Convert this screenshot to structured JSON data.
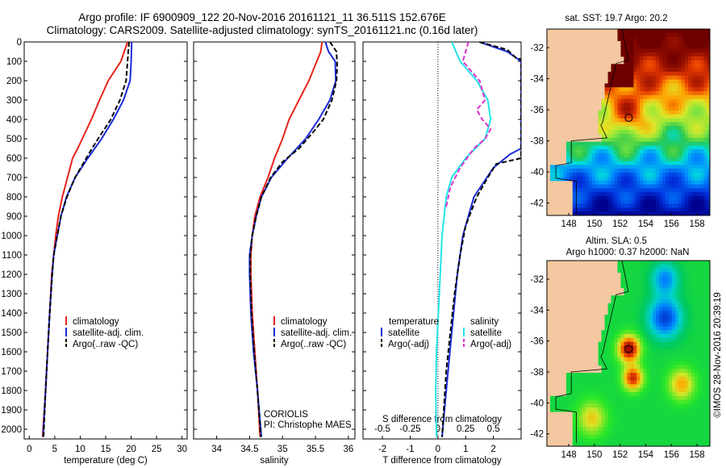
{
  "header": {
    "line1": "Argo profile: IF 6900909_122 20-Nov-2016 20161121_11 36.511S 152.676E",
    "line2": "Climatology: CARS2009. Satellite-adjusted climatology: synTS_20161121.nc (0.16d later)"
  },
  "credit": "©IMOS 28-Nov-2016 20:39:19",
  "colors": {
    "climatology": "#e8241c",
    "satellite": "#1a2bd6",
    "argo": "#000000",
    "sal_sat": "#22e4e8",
    "sal_argo": "#e030d0",
    "land": "#f4c8a0"
  },
  "chart_data": [
    {
      "type": "line",
      "name": "temperature-panel",
      "xlabel": "temperature (deg C)",
      "xlim": [
        -1,
        31
      ],
      "xticks": [
        0,
        5,
        10,
        15,
        20,
        25,
        30
      ],
      "ylim": [
        2050,
        0
      ],
      "yticks": [
        0,
        100,
        200,
        300,
        400,
        500,
        600,
        700,
        800,
        900,
        1000,
        1100,
        1200,
        1300,
        1400,
        1500,
        1600,
        1700,
        1800,
        1900,
        2000
      ],
      "legend": [
        "climatology",
        "satellite-adj. clim.",
        "Argo(..raw -QC)"
      ],
      "series": [
        {
          "name": "climatology",
          "color": "#e8241c",
          "dash": false,
          "points": [
            [
              19.3,
              0
            ],
            [
              18,
              100
            ],
            [
              15.5,
              200
            ],
            [
              13.8,
              300
            ],
            [
              12.2,
              400
            ],
            [
              10.4,
              500
            ],
            [
              9.5,
              550
            ],
            [
              8.5,
              600
            ],
            [
              7.5,
              700
            ],
            [
              6.5,
              800
            ],
            [
              5.7,
              900
            ],
            [
              5.2,
              1000
            ],
            [
              4.8,
              1100
            ],
            [
              4.4,
              1200
            ],
            [
              4,
              1400
            ],
            [
              3.6,
              1600
            ],
            [
              3.2,
              1800
            ],
            [
              2.6,
              2040
            ]
          ]
        },
        {
          "name": "satellite-adj. clim.",
          "color": "#1a2bd6",
          "dash": false,
          "points": [
            [
              20.1,
              0
            ],
            [
              20,
              100
            ],
            [
              19.8,
              200
            ],
            [
              18.5,
              300
            ],
            [
              16.5,
              400
            ],
            [
              14.2,
              500
            ],
            [
              11.5,
              600
            ],
            [
              9,
              700
            ],
            [
              7.3,
              800
            ],
            [
              6.2,
              900
            ],
            [
              5.5,
              1000
            ],
            [
              4.8,
              1100
            ],
            [
              4.5,
              1200
            ],
            [
              4,
              1400
            ],
            [
              3.6,
              1600
            ],
            [
              3.2,
              1800
            ],
            [
              2.7,
              2040
            ]
          ]
        },
        {
          "name": "Argo(..raw -QC)",
          "color": "#000000",
          "dash": true,
          "points": [
            [
              19.6,
              0
            ],
            [
              19.3,
              100
            ],
            [
              19,
              200
            ],
            [
              17.8,
              300
            ],
            [
              16,
              400
            ],
            [
              14,
              480
            ],
            [
              12.3,
              550
            ],
            [
              11.2,
              600
            ],
            [
              9,
              700
            ],
            [
              7.4,
              800
            ],
            [
              6.2,
              900
            ],
            [
              5.5,
              1000
            ],
            [
              4.8,
              1100
            ],
            [
              4.5,
              1200
            ],
            [
              4,
              1400
            ],
            [
              3.6,
              1600
            ],
            [
              3.2,
              1800
            ],
            [
              2.8,
              2040
            ]
          ]
        }
      ]
    },
    {
      "type": "line",
      "name": "salinity-panel",
      "xlabel": "salinity",
      "xlim": [
        33.65,
        36.1
      ],
      "xticks": [
        34,
        34.5,
        35,
        35.5,
        36
      ],
      "ylim": [
        2050,
        0
      ],
      "legend": [
        "climatology",
        "satellite-adj. clim.",
        "Argo(..raw -QC)"
      ],
      "series": [
        {
          "name": "climatology",
          "color": "#e8241c",
          "dash": false,
          "points": [
            [
              35.6,
              0
            ],
            [
              35.58,
              50
            ],
            [
              35.52,
              100
            ],
            [
              35.4,
              200
            ],
            [
              35.25,
              300
            ],
            [
              35.1,
              400
            ],
            [
              35,
              500
            ],
            [
              34.88,
              600
            ],
            [
              34.78,
              700
            ],
            [
              34.66,
              800
            ],
            [
              34.58,
              900
            ],
            [
              34.54,
              1000
            ],
            [
              34.52,
              1100
            ],
            [
              34.52,
              1200
            ],
            [
              34.54,
              1400
            ],
            [
              34.58,
              1600
            ],
            [
              34.62,
              1800
            ],
            [
              34.66,
              2040
            ]
          ]
        },
        {
          "name": "satellite-adj. clim.",
          "color": "#1a2bd6",
          "dash": false,
          "points": [
            [
              35.65,
              0
            ],
            [
              35.7,
              50
            ],
            [
              35.8,
              100
            ],
            [
              35.81,
              200
            ],
            [
              35.72,
              300
            ],
            [
              35.55,
              400
            ],
            [
              35.35,
              500
            ],
            [
              35.08,
              600
            ],
            [
              34.83,
              700
            ],
            [
              34.68,
              800
            ],
            [
              34.6,
              900
            ],
            [
              34.54,
              1000
            ],
            [
              34.5,
              1100
            ],
            [
              34.5,
              1200
            ],
            [
              34.52,
              1400
            ],
            [
              34.56,
              1600
            ],
            [
              34.62,
              1800
            ],
            [
              34.68,
              2040
            ]
          ]
        },
        {
          "name": "Argo(..raw -QC)",
          "color": "#000000",
          "dash": true,
          "points": [
            [
              35.72,
              0
            ],
            [
              35.82,
              50
            ],
            [
              35.83,
              120
            ],
            [
              35.82,
              200
            ],
            [
              35.75,
              300
            ],
            [
              35.62,
              400
            ],
            [
              35.48,
              460
            ],
            [
              35.25,
              550
            ],
            [
              35,
              620
            ],
            [
              34.82,
              700
            ],
            [
              34.68,
              800
            ],
            [
              34.6,
              900
            ],
            [
              34.54,
              1000
            ],
            [
              34.51,
              1100
            ],
            [
              34.51,
              1200
            ],
            [
              34.53,
              1400
            ],
            [
              34.57,
              1600
            ],
            [
              34.62,
              1800
            ],
            [
              34.67,
              2040
            ]
          ]
        }
      ]
    },
    {
      "type": "line",
      "name": "difference-panel",
      "xlabel": "T difference from climatology",
      "xlabel_top": "S difference from climatology",
      "xlim": [
        -2.7,
        3.0
      ],
      "xticks": [
        -2,
        -1,
        0,
        1,
        2
      ],
      "xticklabels_s": [
        "-0.5",
        "-0.25",
        "0",
        "0.25",
        "0.5"
      ],
      "ylim": [
        2050,
        0
      ],
      "legend_temperature": {
        "heading": "temperature",
        "items": [
          "satellite",
          "Argo(-adj)"
        ]
      },
      "legend_salinity": {
        "heading": "salinity",
        "items": [
          "satellite",
          "Argo(-adj)"
        ]
      },
      "series": [
        {
          "name": "temperature satellite",
          "color": "#1a2bd6",
          "dash": false,
          "points": [
            [
              1.5,
              0
            ],
            [
              2.5,
              50
            ],
            [
              3,
              100
            ],
            [
              3,
              120
            ],
            [
              3,
              400
            ],
            [
              3,
              550
            ],
            [
              2.6,
              580
            ],
            [
              2,
              650
            ],
            [
              1.3,
              800
            ],
            [
              0.9,
              1000
            ],
            [
              0.7,
              1200
            ],
            [
              0.5,
              1500
            ],
            [
              0.3,
              1800
            ],
            [
              0.15,
              2040
            ]
          ]
        },
        {
          "name": "temperature Argo(-adj)",
          "color": "#000000",
          "dash": true,
          "points": [
            [
              1.5,
              0
            ],
            [
              2.5,
              40
            ],
            [
              2.8,
              80
            ],
            [
              3,
              90
            ],
            [
              3,
              600
            ],
            [
              2.1,
              630
            ],
            [
              1.8,
              700
            ],
            [
              1.4,
              800
            ],
            [
              1,
              950
            ],
            [
              0.8,
              1100
            ],
            [
              0.6,
              1300
            ],
            [
              0.45,
              1500
            ],
            [
              0.3,
              1700
            ],
            [
              0.15,
              2040
            ]
          ]
        },
        {
          "name": "salinity satellite",
          "color": "#22e4e8",
          "dash": false,
          "points": [
            [
              0.5,
              0
            ],
            [
              0.8,
              100
            ],
            [
              1.4,
              200
            ],
            [
              1.8,
              300
            ],
            [
              1.9,
              400
            ],
            [
              1.7,
              500
            ],
            [
              1,
              600
            ],
            [
              0.5,
              700
            ],
            [
              0.3,
              800
            ],
            [
              0.15,
              1000
            ],
            [
              0.05,
              1300
            ],
            [
              -0.05,
              1600
            ],
            [
              -0.08,
              1800
            ],
            [
              -0.05,
              2040
            ]
          ]
        },
        {
          "name": "salinity Argo(-adj)",
          "color": "#e030d0",
          "dash": true,
          "points": [
            [
              1.1,
              0
            ],
            [
              0.9,
              100
            ],
            [
              1.5,
              200
            ],
            [
              1.7,
              300
            ],
            [
              1.4,
              350
            ],
            [
              1.6,
              400
            ],
            [
              1.9,
              450
            ],
            [
              1.7,
              500
            ],
            [
              1.3,
              550
            ],
            [
              0.8,
              650
            ],
            [
              0.45,
              750
            ],
            [
              0.3,
              850
            ]
          ]
        }
      ],
      "annotations": [
        "CORIOLIS",
        "PI: Christophe MAES"
      ]
    },
    {
      "type": "heatmap",
      "name": "sst-map",
      "title": "sat. SST: 19.7 Argo: 20.2",
      "xticks": [
        148,
        150,
        152,
        154,
        156,
        158
      ],
      "yticks": [
        -32,
        -34,
        -36,
        -38,
        -40,
        -42
      ],
      "xlim": [
        146.3,
        159
      ],
      "ylim": [
        -42.8,
        -30.8
      ],
      "profile_location": [
        152.676,
        -36.511
      ]
    },
    {
      "type": "heatmap",
      "name": "sla-map",
      "title": "Altim. SLA: 0.5",
      "subtitle": "Argo h1000: 0.37 h2000: NaN",
      "xticks": [
        148,
        150,
        152,
        154,
        156,
        158
      ],
      "yticks": [
        -32,
        -34,
        -36,
        -38,
        -40,
        -42
      ],
      "xlim": [
        146.3,
        159
      ],
      "ylim": [
        -42.8,
        -30.8
      ],
      "profile_location": [
        152.676,
        -36.511
      ]
    }
  ]
}
